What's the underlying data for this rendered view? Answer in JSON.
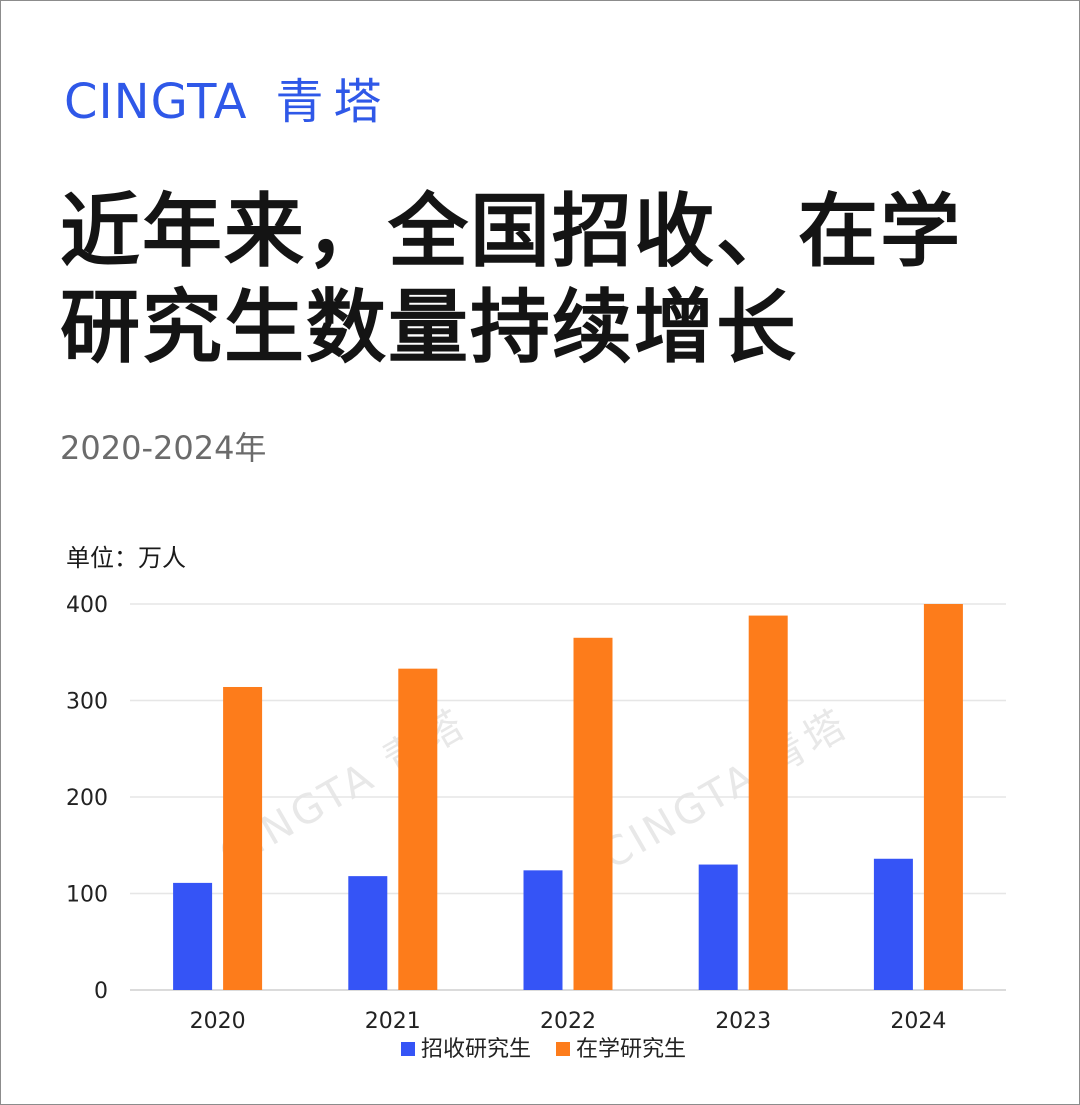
{
  "brand": {
    "latin": "CINGTA",
    "cn": "青塔"
  },
  "title_line1": "近年来，全国招收、在学",
  "title_line2": "研究生数量持续增长",
  "subtitle": "2020-2024年",
  "unit_label": "单位：万人",
  "watermark": "CINGTA 青塔",
  "colors": {
    "brand": "#2f58e8",
    "series_enrolled": "#3554f6",
    "series_in_school": "#fd7c1b"
  },
  "chart_data": {
    "type": "bar",
    "categories": [
      "2020",
      "2021",
      "2022",
      "2023",
      "2024"
    ],
    "series": [
      {
        "name": "招收研究生",
        "values": [
          111,
          118,
          124,
          130,
          136
        ]
      },
      {
        "name": "在学研究生",
        "values": [
          314,
          333,
          365,
          388,
          400
        ]
      }
    ],
    "ylim": [
      0,
      400
    ],
    "yticks": [
      0,
      100,
      200,
      300,
      400
    ],
    "grid": true,
    "legend": "bottom-center"
  }
}
